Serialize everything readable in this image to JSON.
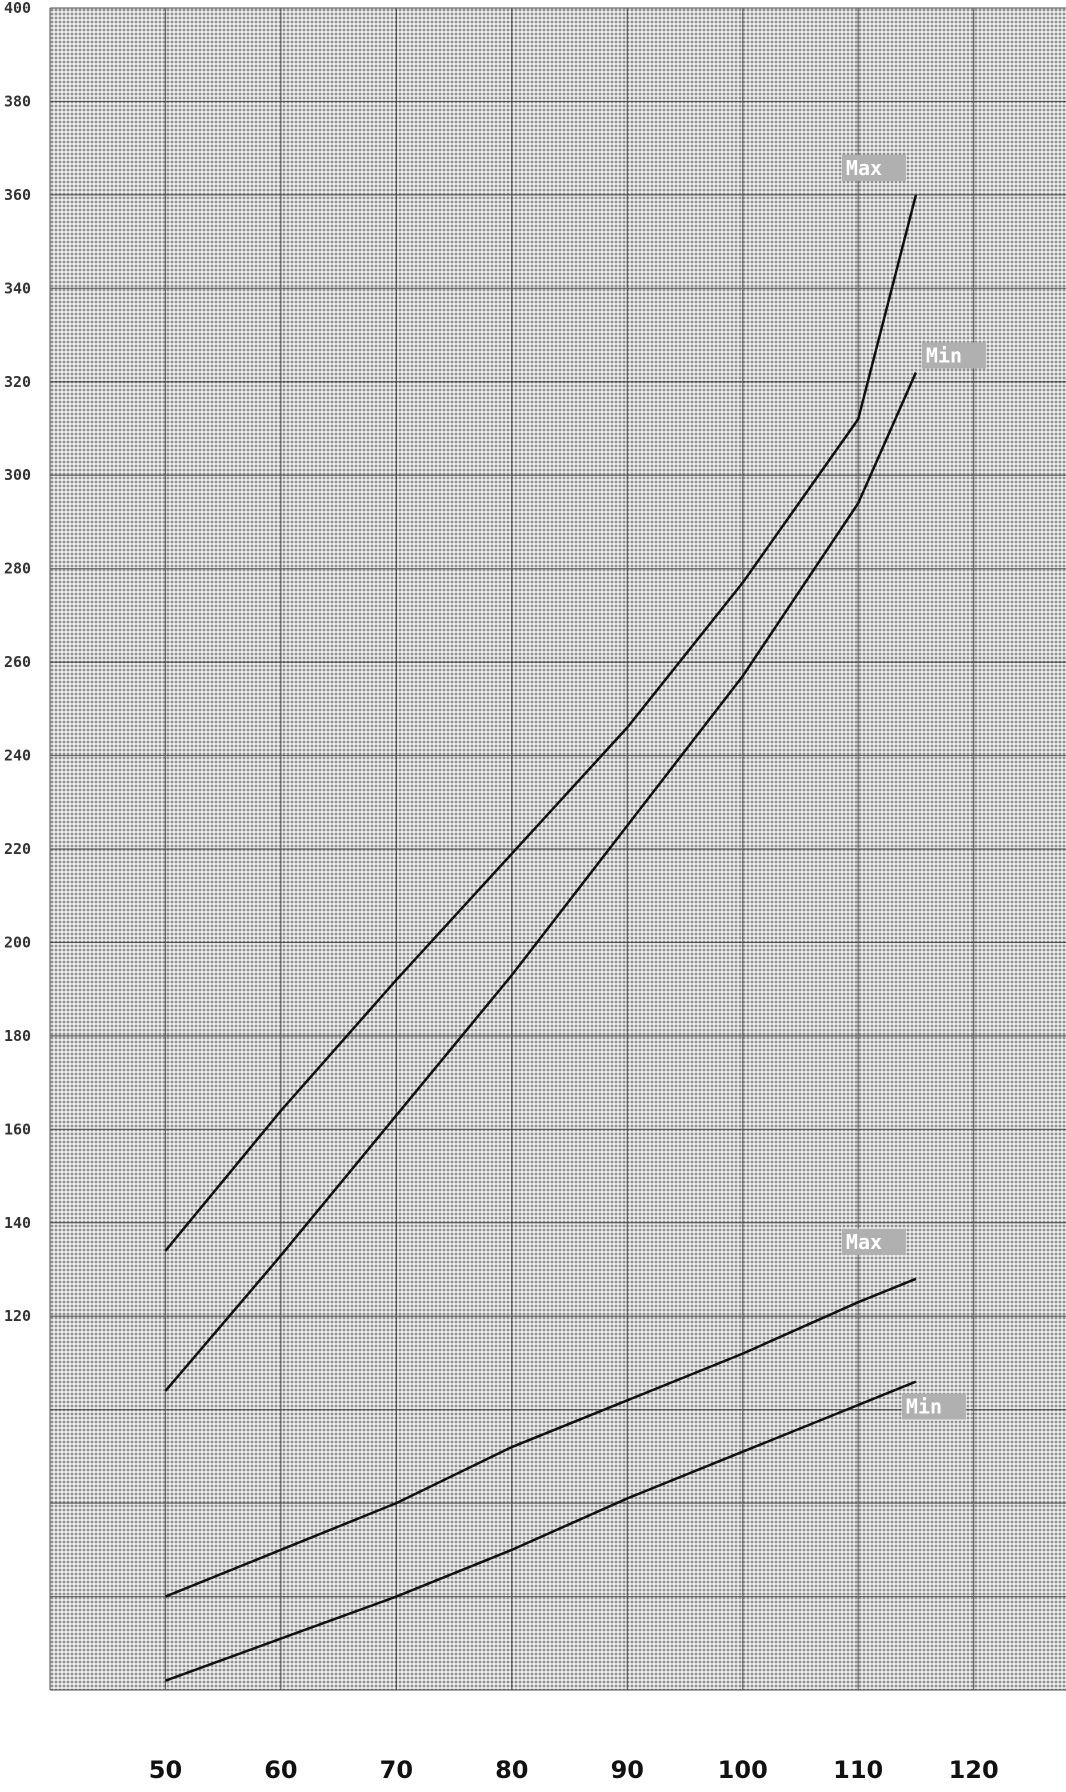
{
  "chart_data": {
    "type": "line",
    "title": "",
    "xlabel": "",
    "ylabel": "",
    "x_ticks": [
      50,
      60,
      70,
      80,
      90,
      100,
      110,
      120
    ],
    "y_ticks": [
      120,
      140,
      160,
      180,
      200,
      220,
      240,
      260,
      280,
      300,
      320,
      340,
      360,
      380,
      400
    ],
    "y_tick_labels": [
      "120",
      "140",
      "160",
      "180",
      "200",
      "220",
      "240",
      "260",
      "280",
      "300",
      "320",
      "340",
      "360",
      "380",
      "400"
    ],
    "xlim": [
      40,
      128
    ],
    "ylim": [
      40,
      400
    ],
    "grid": true,
    "series": [
      {
        "name": "Max",
        "x": [
          50,
          60,
          70,
          80,
          90,
          100,
          110,
          115
        ],
        "y": [
          134,
          164,
          192,
          219,
          246,
          277,
          312,
          360
        ]
      },
      {
        "name": "Min",
        "x": [
          50,
          60,
          70,
          80,
          90,
          100,
          110,
          115
        ],
        "y": [
          104,
          133,
          163,
          193,
          225,
          257,
          294,
          322
        ]
      },
      {
        "name": "Max",
        "x": [
          50,
          60,
          70,
          80,
          90,
          100,
          110,
          115
        ],
        "y": [
          60,
          70,
          80,
          92,
          102,
          112,
          123,
          128
        ]
      },
      {
        "name": "Min",
        "x": [
          50,
          60,
          70,
          80,
          90,
          100,
          110,
          115
        ],
        "y": [
          42,
          51,
          60,
          70,
          81,
          91,
          101,
          106
        ]
      }
    ],
    "colors": {
      "background": "#8f8f8f",
      "grid_fine": "#ffffff",
      "grid_major": "#111111",
      "line": "#111111"
    }
  }
}
